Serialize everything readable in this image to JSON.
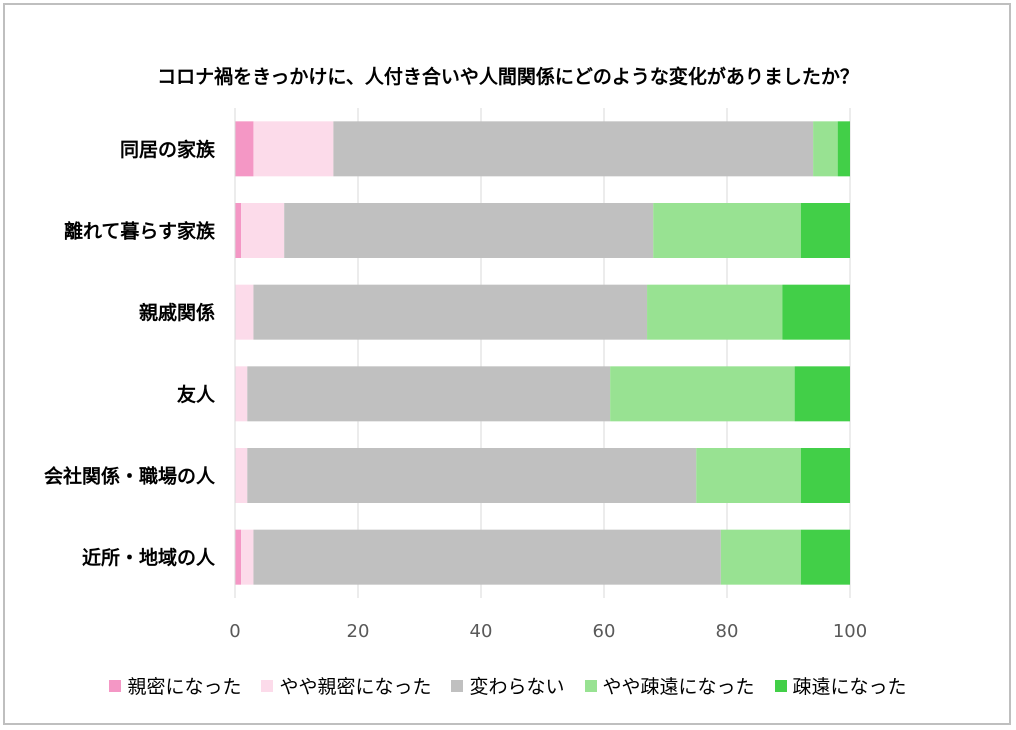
{
  "chart_data": {
    "type": "bar",
    "orientation": "horizontal",
    "stacked": true,
    "title": "コロナ禍をきっかけに、人付き合いや人間関係にどのような変化がありましたか？",
    "categories": [
      "同居の家族",
      "離れて暮らす家族",
      "親戚関係",
      "友人",
      "会社関係・職場の人",
      "近所・地域の人"
    ],
    "series": [
      {
        "name": "親密になった",
        "color": "#f497c5",
        "values": [
          3,
          1,
          0,
          0,
          0,
          1
        ]
      },
      {
        "name": "やや親密になった",
        "color": "#fcdbea",
        "values": [
          13,
          7,
          3,
          2,
          2,
          2
        ]
      },
      {
        "name": "変わらない",
        "color": "#c0c0c0",
        "values": [
          78,
          60,
          64,
          59,
          73,
          76
        ]
      },
      {
        "name": "やや疎遠になった",
        "color": "#98e292",
        "values": [
          4,
          24,
          22,
          30,
          17,
          13
        ]
      },
      {
        "name": "疎遠になった",
        "color": "#42cf48",
        "values": [
          2,
          8,
          11,
          9,
          8,
          8
        ]
      }
    ],
    "xlim": [
      0,
      100
    ],
    "xticks": [
      "0",
      "20",
      "40",
      "60",
      "80",
      "100"
    ],
    "grid": true,
    "legend_position": "bottom"
  }
}
